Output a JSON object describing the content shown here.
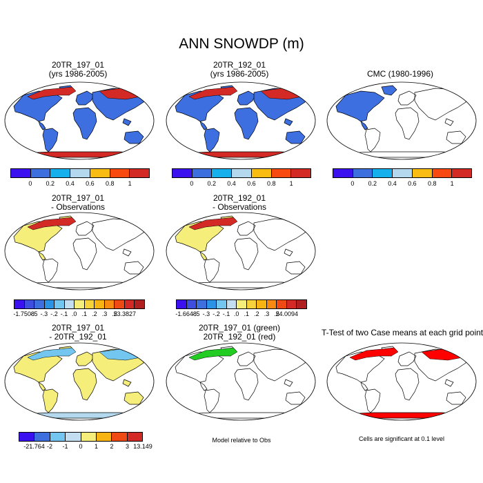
{
  "main_title": "ANN SNOWDP (m)",
  "panels": [
    {
      "id": "p1",
      "title_line1": "20TR_197_01",
      "title_line2": "(yrs 1986-2005)",
      "fill": "#3d6fe0"
    },
    {
      "id": "p2",
      "title_line1": "20TR_192_01",
      "title_line2": "(yrs 1986-2005)",
      "fill": "#3d6fe0"
    },
    {
      "id": "p3",
      "title_line1": "CMC (1980-1996)",
      "title_line2": "",
      "fill": "#3d6fe0"
    },
    {
      "id": "p4",
      "title_line1": "20TR_197_01",
      "title_line2": "- Observations",
      "fill": "#f6ee7a"
    },
    {
      "id": "p5",
      "title_line1": "20TR_192_01",
      "title_line2": "- Observations",
      "fill": "#f6ee7a"
    },
    {
      "id": "p7",
      "title_line1": "20TR_197_01",
      "title_line2": "- 20TR_192_01",
      "fill": "#f6ee7a"
    },
    {
      "id": "p8",
      "title_line1": "20TR_197_01 (green)",
      "title_line2": "20TR_192_01 (red)",
      "fill": "#22cc22"
    },
    {
      "id": "p9",
      "title_line1": "T-Test of two Case means at each grid point",
      "title_line2": "",
      "fill": "#ff0000"
    }
  ],
  "colorbars": {
    "snow": {
      "colors": [
        "#3b12ef",
        "#3e6fde",
        "#16b0ec",
        "#b4d9ee",
        "#f8bc12",
        "#f84a10",
        "#d42a26"
      ],
      "labels": [
        "0",
        "0.2",
        "0.4",
        "0.6",
        "0.8",
        "1"
      ]
    },
    "diff197": {
      "colors": [
        "#3b12ef",
        "#3e4fe0",
        "#3e6fde",
        "#2a93e6",
        "#72c6f0",
        "#c2def0",
        "#f6ee7a",
        "#f8d23a",
        "#f8b412",
        "#f88a12",
        "#f04a14",
        "#d42a26",
        "#b02020"
      ],
      "labels": [
        "-1.7508",
        "-.5",
        "-.3",
        "-.2",
        "-.1",
        ".0",
        ".1",
        ".2",
        ".3",
        ".5",
        "23.3827"
      ]
    },
    "diff192": {
      "colors": [
        "#3b12ef",
        "#3e4fe0",
        "#3e6fde",
        "#2a93e6",
        "#72c6f0",
        "#c2def0",
        "#f6ee7a",
        "#f8d23a",
        "#f8b412",
        "#f88a12",
        "#f04a14",
        "#d42a26",
        "#b02020"
      ],
      "labels": [
        "-1.6648",
        "-.5",
        "-.3",
        "-.2",
        "-.1",
        ".0",
        ".1",
        ".2",
        ".3",
        ".5",
        "24.0094"
      ]
    },
    "casediff": {
      "colors": [
        "#3b12ef",
        "#3e6fde",
        "#72c6f0",
        "#c2def0",
        "#f6ee7a",
        "#f8b412",
        "#f04a14",
        "#d42a26"
      ],
      "labels": [
        "-21.764",
        "-2",
        "-1",
        "0",
        "1",
        "2",
        "3",
        "13.149"
      ]
    }
  },
  "notes": {
    "model_relative": "Model relative to Obs",
    "significance": "Cells are significant at 0.1 level"
  }
}
